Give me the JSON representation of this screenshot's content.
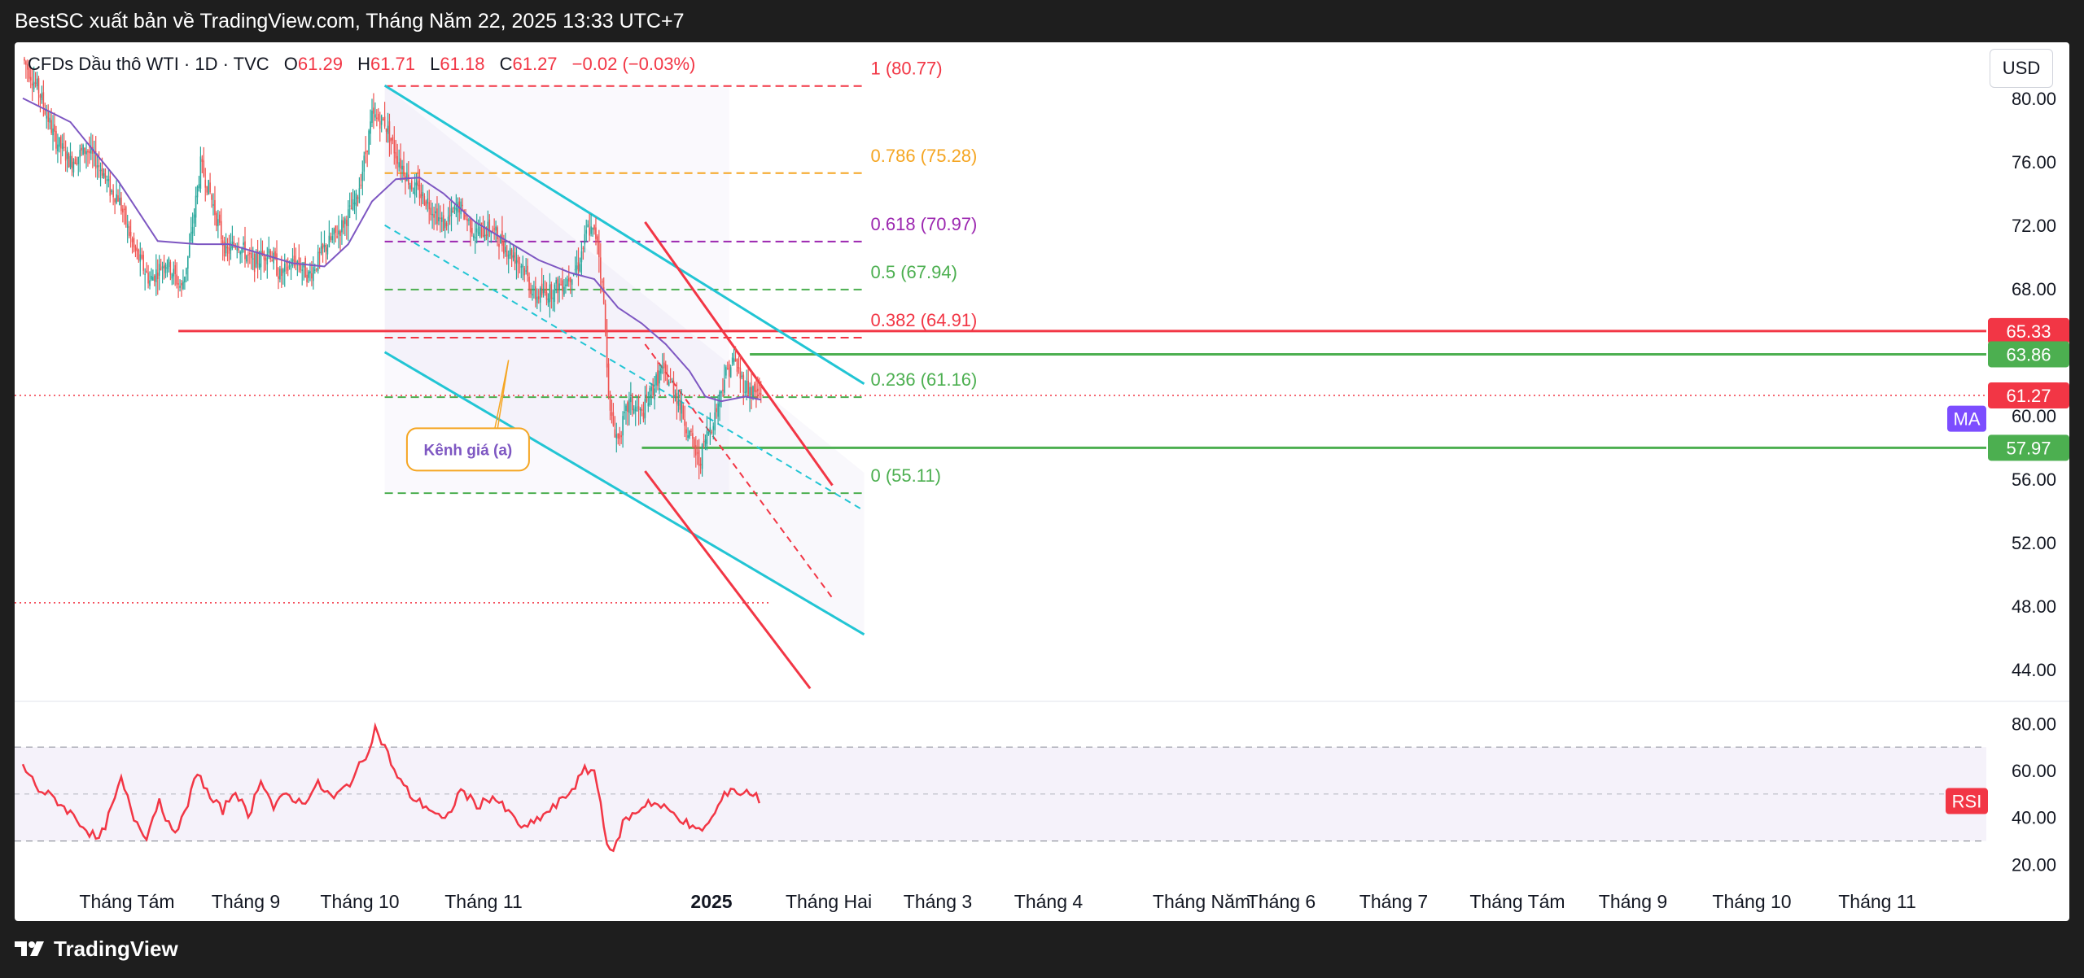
{
  "header": {
    "publisher": "BestSC xuất bản về TradingView.com, Tháng Năm 22, 2025 13:33 UTC+7"
  },
  "legend": {
    "symbol": "CFDs Dầu thô WTI · 1D · TVC",
    "o_label": "O",
    "o_value": "61.29",
    "h_label": "H",
    "h_value": "61.71",
    "l_label": "L",
    "l_value": "61.18",
    "c_label": "C",
    "c_value": "61.27",
    "change": "−0.02 (−0.03%)"
  },
  "currency": "USD",
  "brand": "TradingView",
  "colors": {
    "up": "#26a69a",
    "down": "#ef5350",
    "ma": "#7e57c2",
    "rsi": "#f23645",
    "channel": "#22c5d4",
    "red_line": "#f23645",
    "green_line": "#4caf50"
  },
  "chart_data": {
    "type": "candlestick",
    "y_axis": {
      "ticks": [
        "80.00",
        "76.00",
        "72.00",
        "68.00",
        "64.00",
        "60.00",
        "56.00",
        "52.00",
        "48.00",
        "44.00"
      ],
      "range": [
        42.5,
        82.5
      ]
    },
    "x_axis": {
      "labels": [
        "Tháng Tám",
        "Tháng 9",
        "Tháng 10",
        "Tháng 11",
        "2025",
        "Tháng Hai",
        "Tháng 3",
        "Tháng 4",
        "Tháng Năm",
        "Tháng 6",
        "Tháng 7",
        "Tháng Tám",
        "Tháng 9",
        "Tháng 10",
        "Tháng 11"
      ]
    },
    "price_path": [
      [
        0,
        82.5
      ],
      [
        10,
        80.5
      ],
      [
        20,
        77.5
      ],
      [
        30,
        76.0
      ],
      [
        40,
        76.8
      ],
      [
        50,
        75.5
      ],
      [
        55,
        74.2
      ],
      [
        60,
        73.8
      ],
      [
        70,
        70.5
      ],
      [
        80,
        68.5
      ],
      [
        90,
        69.8
      ],
      [
        100,
        68.0
      ],
      [
        105,
        70.5
      ],
      [
        112,
        75.8
      ],
      [
        118,
        74.0
      ],
      [
        128,
        70.2
      ],
      [
        135,
        71.0
      ],
      [
        145,
        69.5
      ],
      [
        155,
        70.5
      ],
      [
        162,
        68.8
      ],
      [
        172,
        69.8
      ],
      [
        180,
        68.8
      ],
      [
        190,
        70.5
      ],
      [
        200,
        71.8
      ],
      [
        210,
        73.5
      ],
      [
        215,
        76.0
      ],
      [
        220,
        78.8
      ],
      [
        228,
        78.5
      ],
      [
        235,
        76.5
      ],
      [
        245,
        74.5
      ],
      [
        255,
        73.5
      ],
      [
        265,
        72.0
      ],
      [
        275,
        73.2
      ],
      [
        285,
        71.5
      ],
      [
        295,
        71.8
      ],
      [
        305,
        70.5
      ],
      [
        315,
        69.5
      ],
      [
        322,
        67.5
      ],
      [
        332,
        67.8
      ],
      [
        342,
        68.5
      ],
      [
        350,
        69.5
      ],
      [
        356,
        71.8
      ],
      [
        362,
        71.2
      ],
      [
        366,
        67.0
      ],
      [
        370,
        60.0
      ],
      [
        375,
        58.5
      ],
      [
        382,
        60.8
      ],
      [
        390,
        60.0
      ],
      [
        396,
        61.5
      ],
      [
        402,
        62.8
      ],
      [
        410,
        61.8
      ],
      [
        416,
        60.0
      ],
      [
        420,
        58.8
      ],
      [
        426,
        57.0
      ],
      [
        430,
        58.5
      ],
      [
        436,
        60.0
      ],
      [
        442,
        62.5
      ],
      [
        448,
        63.5
      ],
      [
        454,
        62.0
      ],
      [
        460,
        61.5
      ],
      [
        465,
        61.27
      ]
    ],
    "ma_path": [
      [
        0,
        80.0
      ],
      [
        30,
        78.5
      ],
      [
        60,
        74.8
      ],
      [
        85,
        71.0
      ],
      [
        110,
        70.8
      ],
      [
        130,
        70.8
      ],
      [
        150,
        70.2
      ],
      [
        170,
        69.6
      ],
      [
        190,
        69.4
      ],
      [
        205,
        70.8
      ],
      [
        220,
        73.5
      ],
      [
        235,
        74.9
      ],
      [
        250,
        75.0
      ],
      [
        265,
        74.0
      ],
      [
        285,
        72.2
      ],
      [
        305,
        71.0
      ],
      [
        325,
        69.8
      ],
      [
        345,
        69.0
      ],
      [
        360,
        68.6
      ],
      [
        375,
        66.8
      ],
      [
        390,
        65.8
      ],
      [
        405,
        64.5
      ],
      [
        420,
        62.8
      ],
      [
        430,
        61.2
      ],
      [
        440,
        60.9
      ],
      [
        455,
        61.2
      ],
      [
        465,
        61.0
      ]
    ],
    "rsi": {
      "ticks": [
        "80.00",
        "60.00",
        "40.00",
        "20.00"
      ],
      "range": [
        16,
        86
      ],
      "upper": 70,
      "lower": 30,
      "label": "RSI",
      "path": [
        [
          0,
          62
        ],
        [
          10,
          52
        ],
        [
          20,
          48
        ],
        [
          30,
          42
        ],
        [
          40,
          35
        ],
        [
          48,
          30
        ],
        [
          55,
          42
        ],
        [
          62,
          56
        ],
        [
          70,
          40
        ],
        [
          78,
          32
        ],
        [
          86,
          48
        ],
        [
          94,
          33
        ],
        [
          102,
          41
        ],
        [
          110,
          60
        ],
        [
          118,
          48
        ],
        [
          126,
          43
        ],
        [
          134,
          52
        ],
        [
          142,
          40
        ],
        [
          150,
          57
        ],
        [
          158,
          44
        ],
        [
          166,
          50
        ],
        [
          176,
          46
        ],
        [
          186,
          54
        ],
        [
          196,
          48
        ],
        [
          206,
          55
        ],
        [
          216,
          66
        ],
        [
          222,
          78
        ],
        [
          228,
          70
        ],
        [
          236,
          57
        ],
        [
          246,
          48
        ],
        [
          256,
          44
        ],
        [
          266,
          38
        ],
        [
          276,
          52
        ],
        [
          286,
          45
        ],
        [
          296,
          49
        ],
        [
          306,
          42
        ],
        [
          316,
          35
        ],
        [
          326,
          40
        ],
        [
          336,
          45
        ],
        [
          346,
          52
        ],
        [
          354,
          60
        ],
        [
          360,
          60
        ],
        [
          364,
          46
        ],
        [
          368,
          30
        ],
        [
          372,
          24
        ],
        [
          378,
          38
        ],
        [
          386,
          42
        ],
        [
          394,
          47
        ],
        [
          404,
          44
        ],
        [
          414,
          40
        ],
        [
          424,
          34
        ],
        [
          432,
          37
        ],
        [
          440,
          47
        ],
        [
          446,
          53
        ],
        [
          452,
          50
        ],
        [
          458,
          51
        ],
        [
          465,
          47
        ]
      ]
    },
    "fibonacci": [
      {
        "label": "1 (80.77)",
        "value": 80.77,
        "color": "#f23645"
      },
      {
        "label": "0.786 (75.28)",
        "value": 75.28,
        "color": "#f5a623"
      },
      {
        "label": "0.618 (70.97)",
        "value": 70.97,
        "color": "#9c27b0"
      },
      {
        "label": "0.5 (67.94)",
        "value": 67.94,
        "color": "#4caf50"
      },
      {
        "label": "0.382 (64.91)",
        "value": 64.91,
        "color": "#f23645"
      },
      {
        "label": "0.236 (61.16)",
        "value": 61.16,
        "color": "#4caf50"
      },
      {
        "label": "0 (55.11)",
        "value": 55.11,
        "color": "#4caf50"
      }
    ],
    "levels": [
      {
        "label": "65.33",
        "value": 65.33,
        "color": "#f23645"
      },
      {
        "label": "63.86",
        "value": 63.86,
        "color": "#4caf50"
      },
      {
        "label": "61.27",
        "value": 61.27,
        "color": "#f23645"
      },
      {
        "label": "57.97",
        "value": 57.97,
        "color": "#4caf50"
      }
    ],
    "ma_label": "MA",
    "annotation": "Kênh giá (a)"
  }
}
